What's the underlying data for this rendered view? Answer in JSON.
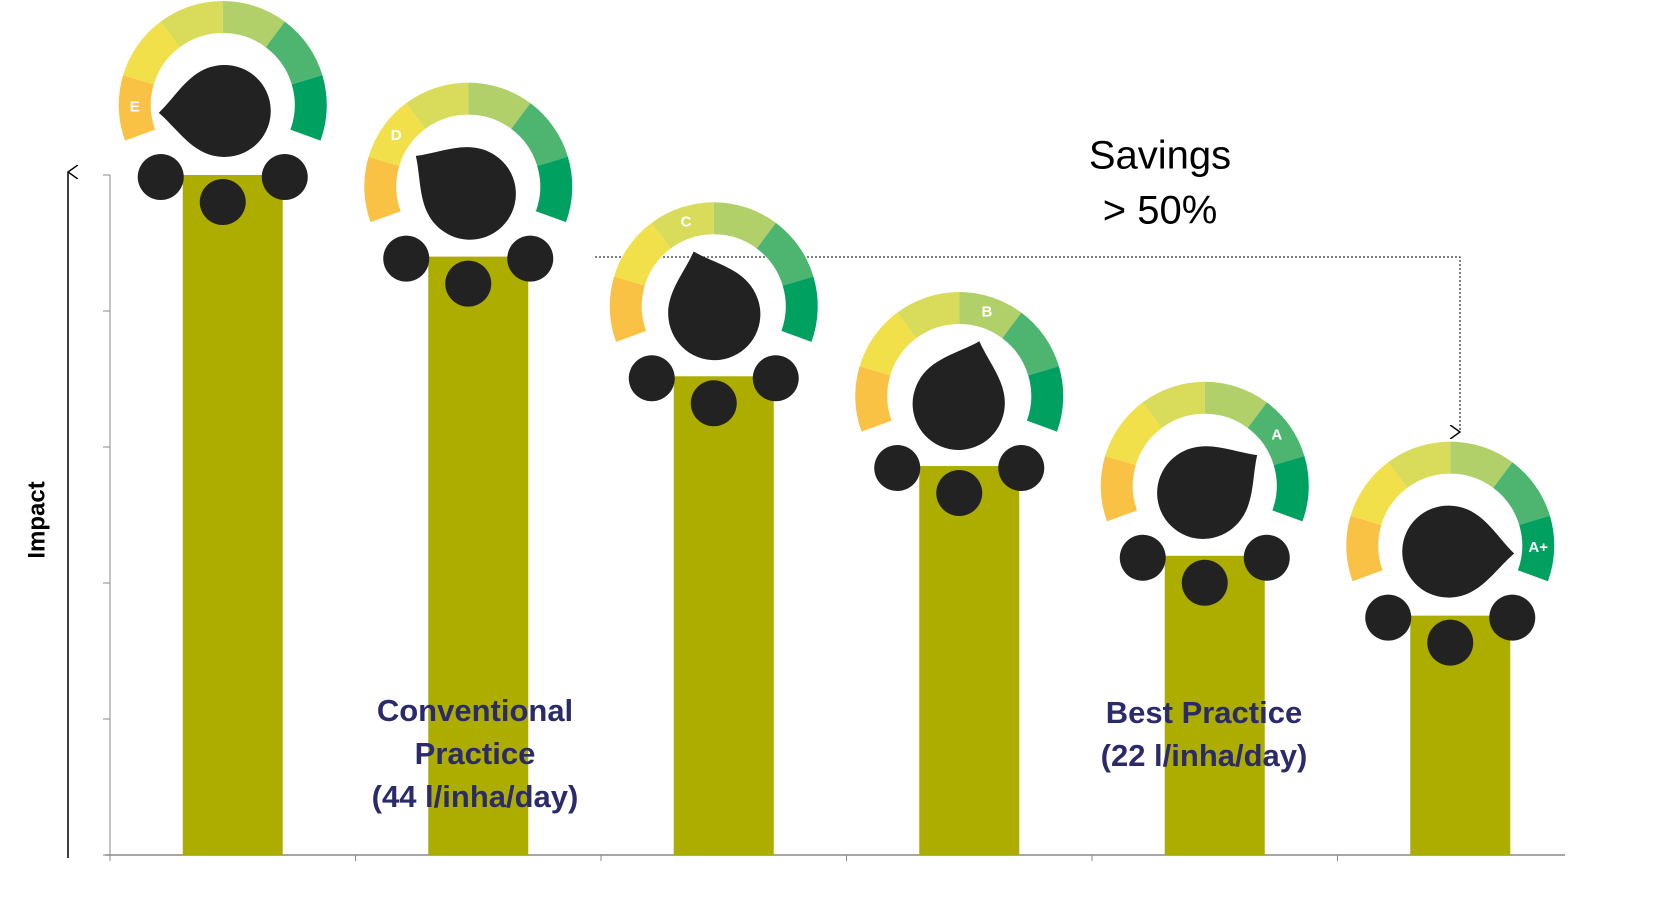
{
  "chart_data": {
    "type": "bar",
    "y_label": "Impact",
    "categories": [
      null,
      null,
      null,
      null,
      null,
      null
    ],
    "values": [
      5.0,
      4.4,
      3.52,
      2.86,
      2.2,
      1.76
    ],
    "ratings": [
      "E",
      "D",
      "C",
      "B",
      "A",
      "A+"
    ],
    "color": "#adad00",
    "gauge_colors": [
      "#f9c245",
      "#f2e04a",
      "#d9dc5a",
      "#b2d06a",
      "#4db56f",
      "#00a060"
    ],
    "ylim": [
      0,
      5
    ],
    "yticks": [
      0,
      1,
      2,
      3,
      4,
      5
    ],
    "annotations": {
      "savings": [
        "Savings",
        "> 50%"
      ],
      "conventional": [
        "Conventional",
        "Practice",
        "(44 l/inha/day)"
      ],
      "best": [
        "Best Practice",
        "(22 l/inha/day)"
      ]
    }
  }
}
